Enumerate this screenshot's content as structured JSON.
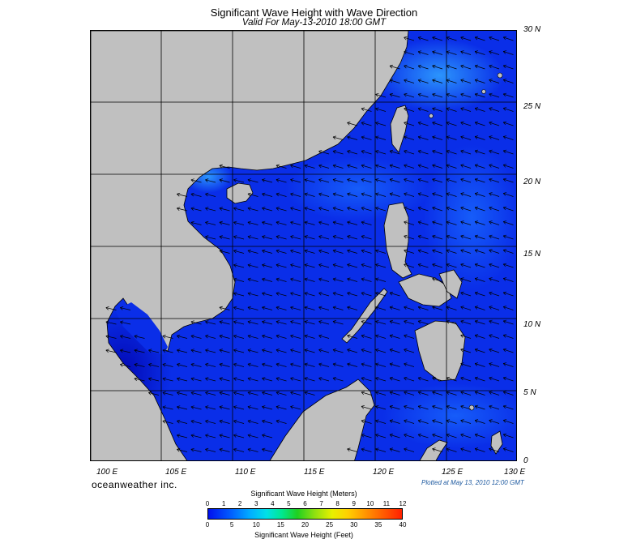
{
  "header": {
    "title": "Significant Wave Height with Wave Direction",
    "subtitle": "Valid For May-13-2010 18:00 GMT"
  },
  "map": {
    "lat_labels": [
      "30 N",
      "25 N",
      "20 N",
      "15 N",
      "10 N",
      "5 N",
      "0"
    ],
    "lon_labels": [
      "100 E",
      "105 E",
      "110 E",
      "115 E",
      "120 E",
      "125 E",
      "130 E"
    ],
    "land_color": "#c0c0c0",
    "ocean_base_color": "#0a2ee8",
    "wave_direction": "mostly from east-northeast (arrows pointing west-southwest)"
  },
  "footer": {
    "brand": "oceanweather inc.",
    "plotted": "Plotted at May 13, 2010 12:00 GMT"
  },
  "colorbar": {
    "meters_title": "Significant Wave Height (Meters)",
    "feet_title": "Significant Wave Height (Feet)",
    "meters_ticks": [
      "0",
      "1",
      "2",
      "3",
      "4",
      "5",
      "6",
      "7",
      "8",
      "9",
      "10",
      "11",
      "12"
    ],
    "feet_ticks": [
      "0",
      "5",
      "10",
      "15",
      "20",
      "25",
      "30",
      "35",
      "40"
    ]
  }
}
